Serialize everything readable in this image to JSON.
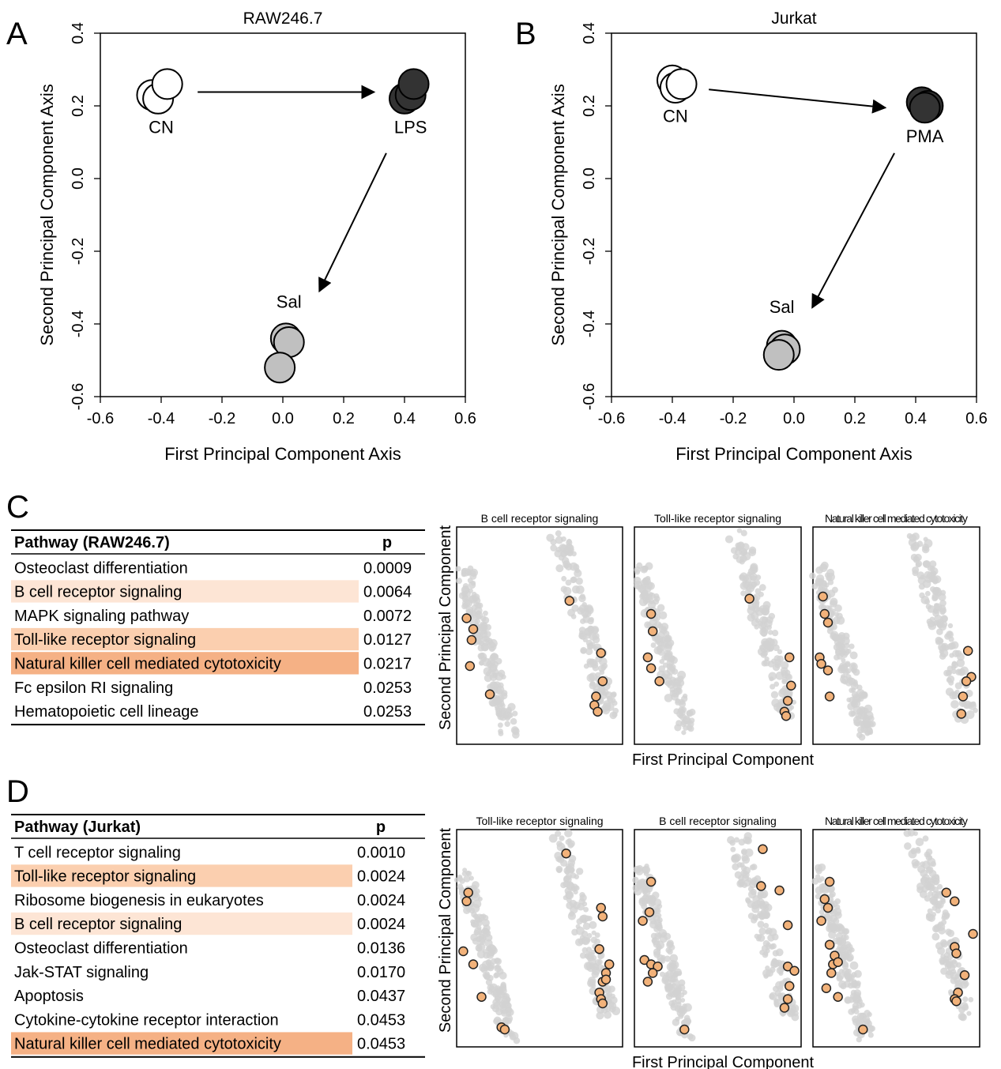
{
  "panels": {
    "A": "A",
    "B": "B",
    "C": "C",
    "D": "D"
  },
  "chart_data": [
    {
      "id": "A",
      "type": "scatter",
      "title": "RAW246.7",
      "xlabel": "First Principal Component Axis",
      "ylabel": "Second Principal Component Axis",
      "xlim": [
        -0.6,
        0.6
      ],
      "ylim": [
        -0.6,
        0.4
      ],
      "xticks": [
        "-0.6",
        "-0.4",
        "-0.2",
        "0.0",
        "0.2",
        "0.4",
        "0.6"
      ],
      "yticks": [
        "-0.6",
        "-0.4",
        "-0.2",
        "0.0",
        "0.2",
        "0.4"
      ],
      "groups": [
        {
          "label": "CN",
          "color": "#ffffff",
          "points": [
            [
              -0.43,
              0.23
            ],
            [
              -0.41,
              0.22
            ],
            [
              -0.38,
              0.26
            ]
          ],
          "label_at": [
            -0.4,
            0.125
          ]
        },
        {
          "label": "LPS",
          "color": "#333333",
          "points": [
            [
              0.4,
              0.22
            ],
            [
              0.42,
              0.23
            ],
            [
              0.43,
              0.26
            ]
          ],
          "label_at": [
            0.42,
            0.125
          ]
        },
        {
          "label": "Sal",
          "color": "#c0c0c0",
          "points": [
            [
              0.01,
              -0.44
            ],
            [
              0.02,
              -0.45
            ],
            [
              -0.01,
              -0.52
            ]
          ],
          "label_at": [
            0.02,
            -0.355
          ]
        }
      ],
      "arrows": [
        [
          [
            -0.28,
            0.238
          ],
          [
            0.3,
            0.238
          ]
        ],
        [
          [
            0.34,
            0.07
          ],
          [
            0.12,
            -0.31
          ]
        ]
      ]
    },
    {
      "id": "B",
      "type": "scatter",
      "title": "Jurkat",
      "xlabel": "First Principal Component Axis",
      "ylabel": "Second Principal Component Axis",
      "xlim": [
        -0.6,
        0.6
      ],
      "ylim": [
        -0.6,
        0.4
      ],
      "xticks": [
        "-0.6",
        "-0.4",
        "-0.2",
        "0.0",
        "0.2",
        "0.4",
        "0.6"
      ],
      "yticks": [
        "-0.6",
        "-0.4",
        "-0.2",
        "0.0",
        "0.2",
        "0.4"
      ],
      "groups": [
        {
          "label": "CN",
          "color": "#ffffff",
          "points": [
            [
              -0.4,
              0.27
            ],
            [
              -0.39,
              0.25
            ],
            [
              -0.37,
              0.26
            ]
          ],
          "label_at": [
            -0.39,
            0.155
          ]
        },
        {
          "label": "PMA",
          "color": "#333333",
          "points": [
            [
              0.42,
              0.21
            ],
            [
              0.44,
              0.2
            ],
            [
              0.43,
              0.195
            ]
          ],
          "label_at": [
            0.43,
            0.1
          ]
        },
        {
          "label": "Sal",
          "color": "#c0c0c0",
          "points": [
            [
              -0.04,
              -0.46
            ],
            [
              -0.03,
              -0.47
            ],
            [
              -0.05,
              -0.485
            ]
          ],
          "label_at": [
            -0.04,
            -0.37
          ]
        }
      ],
      "arrows": [
        [
          [
            -0.28,
            0.245
          ],
          [
            0.3,
            0.195
          ]
        ],
        [
          [
            0.33,
            0.07
          ],
          [
            0.06,
            -0.355
          ]
        ]
      ]
    },
    {
      "id": "C-mini",
      "type": "scatter",
      "xlabel": "First Principal Component",
      "ylabel": "Second Principal Component",
      "facets": [
        {
          "title": "B cell receptor signaling",
          "highlight": [
            [
              0.06,
              0.42
            ],
            [
              0.1,
              0.47
            ],
            [
              0.09,
              0.52
            ],
            [
              0.08,
              0.64
            ],
            [
              0.2,
              0.77
            ],
            [
              0.68,
              0.34
            ],
            [
              0.87,
              0.58
            ],
            [
              0.88,
              0.71
            ],
            [
              0.84,
              0.78
            ],
            [
              0.83,
              0.82
            ],
            [
              0.85,
              0.85
            ]
          ]
        },
        {
          "title": "Toll-like receptor signaling",
          "highlight": [
            [
              0.1,
              0.4
            ],
            [
              0.11,
              0.48
            ],
            [
              0.08,
              0.6
            ],
            [
              0.1,
              0.65
            ],
            [
              0.15,
              0.71
            ],
            [
              0.69,
              0.33
            ],
            [
              0.93,
              0.6
            ],
            [
              0.94,
              0.73
            ],
            [
              0.92,
              0.8
            ],
            [
              0.9,
              0.85
            ],
            [
              0.91,
              0.87
            ]
          ]
        },
        {
          "title": "Natural killer cell mediated cytotoxicity",
          "highlight": [
            [
              0.06,
              0.32
            ],
            [
              0.07,
              0.4
            ],
            [
              0.09,
              0.44
            ],
            [
              0.04,
              0.6
            ],
            [
              0.05,
              0.63
            ],
            [
              0.09,
              0.66
            ],
            [
              0.1,
              0.78
            ],
            [
              0.93,
              0.57
            ],
            [
              0.95,
              0.69
            ],
            [
              0.92,
              0.71
            ],
            [
              0.9,
              0.78
            ],
            [
              0.89,
              0.86
            ]
          ]
        }
      ]
    },
    {
      "id": "D-mini",
      "type": "scatter",
      "xlabel": "First Principal Component",
      "ylabel": "Second Principal Component",
      "facets": [
        {
          "title": "Toll-like receptor signaling",
          "highlight": [
            [
              0.07,
              0.29
            ],
            [
              0.06,
              0.33
            ],
            [
              0.04,
              0.56
            ],
            [
              0.1,
              0.62
            ],
            [
              0.15,
              0.77
            ],
            [
              0.27,
              0.91
            ],
            [
              0.29,
              0.92
            ],
            [
              0.66,
              0.11
            ],
            [
              0.87,
              0.36
            ],
            [
              0.88,
              0.4
            ],
            [
              0.86,
              0.55
            ],
            [
              0.92,
              0.62
            ],
            [
              0.9,
              0.66
            ],
            [
              0.88,
              0.7
            ],
            [
              0.86,
              0.75
            ],
            [
              0.87,
              0.78
            ],
            [
              0.9,
              0.69
            ],
            [
              0.88,
              0.8
            ]
          ]
        },
        {
          "title": "B cell receptor signaling",
          "highlight": [
            [
              0.1,
              0.24
            ],
            [
              0.09,
              0.38
            ],
            [
              0.05,
              0.42
            ],
            [
              0.06,
              0.6
            ],
            [
              0.1,
              0.62
            ],
            [
              0.14,
              0.63
            ],
            [
              0.11,
              0.66
            ],
            [
              0.08,
              0.7
            ],
            [
              0.3,
              0.92
            ],
            [
              0.77,
              0.09
            ],
            [
              0.76,
              0.26
            ],
            [
              0.87,
              0.28
            ],
            [
              0.92,
              0.44
            ],
            [
              0.92,
              0.63
            ],
            [
              0.96,
              0.65
            ],
            [
              0.93,
              0.72
            ],
            [
              0.92,
              0.78
            ],
            [
              0.9,
              0.82
            ]
          ]
        },
        {
          "title": "Natural killer cell mediated cytotoxicity",
          "highlight": [
            [
              0.1,
              0.24
            ],
            [
              0.07,
              0.32
            ],
            [
              0.09,
              0.36
            ],
            [
              0.05,
              0.42
            ],
            [
              0.1,
              0.53
            ],
            [
              0.13,
              0.58
            ],
            [
              0.12,
              0.62
            ],
            [
              0.15,
              0.61
            ],
            [
              0.11,
              0.66
            ],
            [
              0.08,
              0.73
            ],
            [
              0.15,
              0.77
            ],
            [
              0.3,
              0.92
            ],
            [
              0.8,
              0.29
            ],
            [
              0.85,
              0.33
            ],
            [
              0.96,
              0.48
            ],
            [
              0.85,
              0.54
            ],
            [
              0.86,
              0.57
            ],
            [
              0.91,
              0.67
            ],
            [
              0.87,
              0.75
            ],
            [
              0.85,
              0.78
            ],
            [
              0.86,
              0.79
            ]
          ]
        }
      ]
    }
  ],
  "tableC": {
    "header": "Pathway (RAW246.7)",
    "p_header": "p",
    "rows": [
      {
        "name": "Osteoclast differentiation",
        "p": "0.0009",
        "shade": ""
      },
      {
        "name": "B cell receptor signaling",
        "p": "0.0064",
        "shade": "#fde5d5"
      },
      {
        "name": "MAPK signaling pathway",
        "p": "0.0072",
        "shade": ""
      },
      {
        "name": "Toll-like receptor signaling",
        "p": "0.0127",
        "shade": "#fbcfaf"
      },
      {
        "name": "Natural killer cell mediated cytotoxicity",
        "p": "0.0217",
        "shade": "#f5b185"
      },
      {
        "name": "Fc epsilon RI signaling",
        "p": "0.0253",
        "shade": ""
      },
      {
        "name": "Hematopoietic cell lineage",
        "p": "0.0253",
        "shade": ""
      }
    ]
  },
  "tableD": {
    "header": "Pathway (Jurkat)",
    "p_header": "p",
    "rows": [
      {
        "name": "T cell receptor signaling",
        "p": "0.0010",
        "shade": ""
      },
      {
        "name": "Toll-like receptor signaling",
        "p": "0.0024",
        "shade": "#fbcfaf"
      },
      {
        "name": "Ribosome biogenesis in eukaryotes",
        "p": "0.0024",
        "shade": ""
      },
      {
        "name": "B cell receptor signaling",
        "p": "0.0024",
        "shade": "#fde5d5"
      },
      {
        "name": "Osteoclast differentiation",
        "p": "0.0136",
        "shade": ""
      },
      {
        "name": "Jak-STAT signaling",
        "p": "0.0170",
        "shade": ""
      },
      {
        "name": "Apoptosis",
        "p": "0.0437",
        "shade": ""
      },
      {
        "name": "Cytokine-cytokine receptor interaction",
        "p": "0.0453",
        "shade": ""
      },
      {
        "name": "Natural killer cell mediated cytotoxicity",
        "p": "0.0453",
        "shade": "#f5b185"
      }
    ]
  },
  "colors": {
    "highlight_fill": "#f2b27a",
    "background_points": "#d2d2d2"
  }
}
